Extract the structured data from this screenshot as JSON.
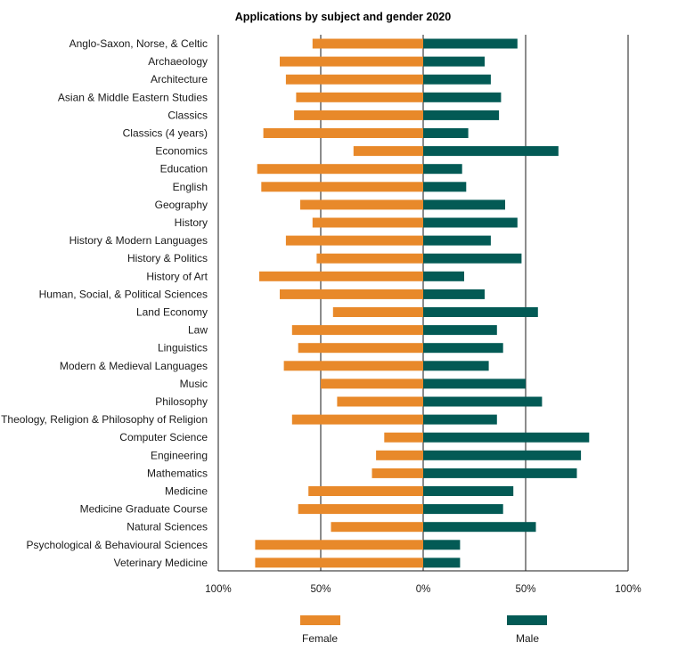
{
  "chart_data": {
    "type": "bar",
    "orientation": "horizontal-diverging",
    "title": "Applications by subject and gender 2020",
    "categories": [
      "Anglo-Saxon, Norse, & Celtic",
      "Archaeology",
      "Architecture",
      "Asian & Middle Eastern Studies",
      "Classics",
      "Classics (4 years)",
      "Economics",
      "Education",
      "English",
      "Geography",
      "History",
      "History & Modern Languages",
      "History & Politics",
      "History of Art",
      "Human, Social, & Political Sciences",
      "Land Economy",
      "Law",
      "Linguistics",
      "Modern & Medieval Languages",
      "Music",
      "Philosophy",
      "Theology, Religion & Philosophy of Religion",
      "Computer Science",
      "Engineering",
      "Mathematics",
      "Medicine",
      "Medicine Graduate Course",
      "Natural Sciences",
      "Psychological & Behavioural Sciences",
      "Veterinary Medicine"
    ],
    "series": [
      {
        "name": "Female",
        "color": "#e8892a",
        "values": [
          54,
          70,
          67,
          62,
          63,
          78,
          34,
          81,
          79,
          60,
          54,
          67,
          52,
          80,
          70,
          44,
          64,
          61,
          68,
          50,
          42,
          64,
          19,
          23,
          25,
          56,
          61,
          45,
          82,
          82
        ]
      },
      {
        "name": "Male",
        "color": "#035a55",
        "values": [
          46,
          30,
          33,
          38,
          37,
          22,
          66,
          19,
          21,
          40,
          46,
          33,
          48,
          20,
          30,
          56,
          36,
          39,
          32,
          50,
          58,
          36,
          81,
          77,
          75,
          44,
          39,
          55,
          18,
          18
        ]
      }
    ],
    "x_tick_labels": [
      "100%",
      "50%",
      "0%",
      "50%",
      "100%"
    ],
    "xlim": [
      -100,
      100
    ],
    "grid": true,
    "legend_position": "bottom"
  }
}
